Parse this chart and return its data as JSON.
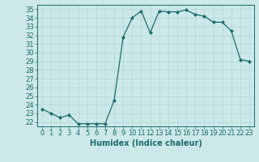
{
  "x": [
    0,
    1,
    2,
    3,
    4,
    5,
    6,
    7,
    8,
    9,
    10,
    11,
    12,
    13,
    14,
    15,
    16,
    17,
    18,
    19,
    20,
    21,
    22,
    23
  ],
  "y": [
    23.5,
    23.0,
    22.5,
    22.8,
    21.8,
    21.8,
    21.8,
    21.8,
    24.5,
    31.8,
    34.0,
    34.8,
    32.3,
    34.8,
    34.7,
    34.7,
    34.9,
    34.4,
    34.2,
    33.5,
    33.5,
    32.5,
    29.2,
    29.0
  ],
  "line_color": "#1a6b6b",
  "marker": "D",
  "marker_size": 2,
  "bg_color": "#cce8e8",
  "grid_color": "#b8d8d8",
  "tick_color": "#1a6b6b",
  "xlabel": "Humidex (Indice chaleur)",
  "xlabel_fontsize": 7,
  "tick_fontsize": 6,
  "ylim": [
    21.5,
    35.5
  ],
  "xlim": [
    -0.5,
    23.5
  ],
  "yticks": [
    22,
    23,
    24,
    25,
    26,
    27,
    28,
    29,
    30,
    31,
    32,
    33,
    34,
    35
  ],
  "xticks": [
    0,
    1,
    2,
    3,
    4,
    5,
    6,
    7,
    8,
    9,
    10,
    11,
    12,
    13,
    14,
    15,
    16,
    17,
    18,
    19,
    20,
    21,
    22,
    23
  ]
}
